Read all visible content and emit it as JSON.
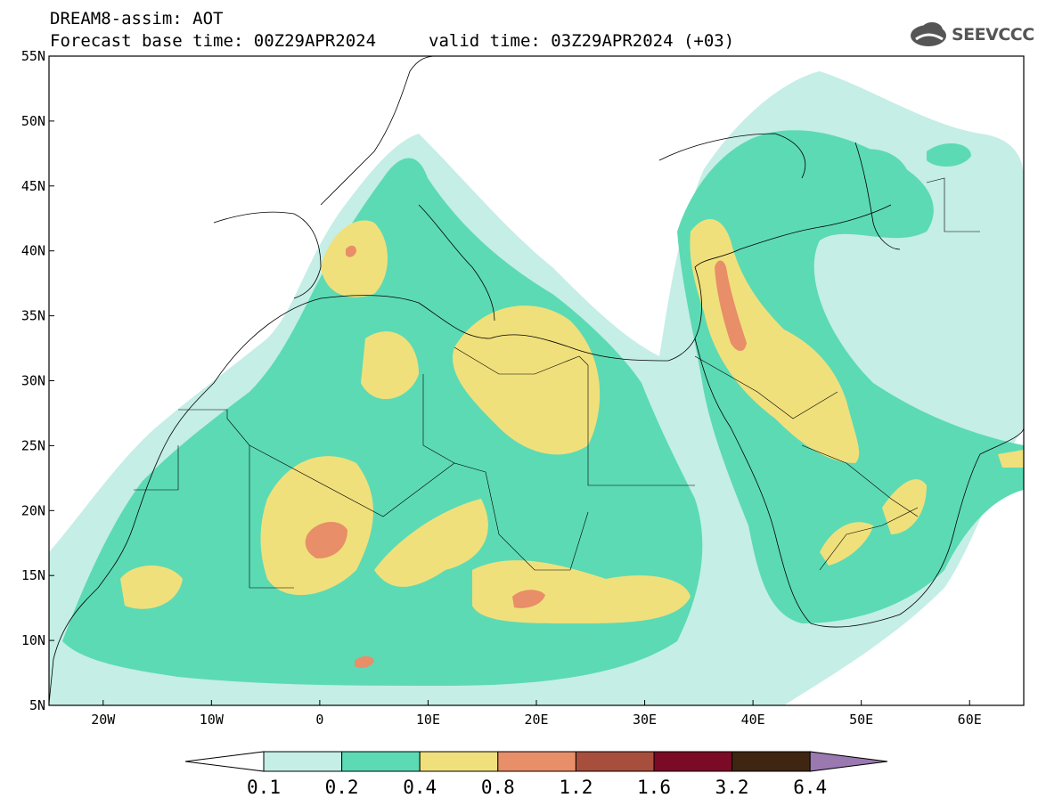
{
  "header": {
    "title": "DREAM8-assim: AOT",
    "base_time": "Forecast base time: 00Z29APR2024",
    "valid_time": "valid time: 03Z29APR2024 (+03)",
    "logo_text": "SEEVCCC"
  },
  "map": {
    "extent": {
      "lon": [
        -25,
        65
      ],
      "lat": [
        5,
        55
      ]
    },
    "lat_labels": [
      "55N",
      "50N",
      "45N",
      "40N",
      "35N",
      "30N",
      "25N",
      "20N",
      "15N",
      "10N",
      "5N"
    ],
    "lon_labels": [
      "20W",
      "10W",
      "0",
      "10E",
      "20E",
      "30E",
      "40E",
      "50E",
      "60E"
    ]
  },
  "colorbar": {
    "labels": [
      "0.1",
      "0.2",
      "0.4",
      "0.8",
      "1.2",
      "1.6",
      "3.2",
      "6.4"
    ],
    "colors": [
      "#c4eee6",
      "#5cdab4",
      "#f0e07c",
      "#e88e68",
      "#a84e3c",
      "#7a0a26",
      "#3e2612",
      "#9a78b0"
    ]
  }
}
